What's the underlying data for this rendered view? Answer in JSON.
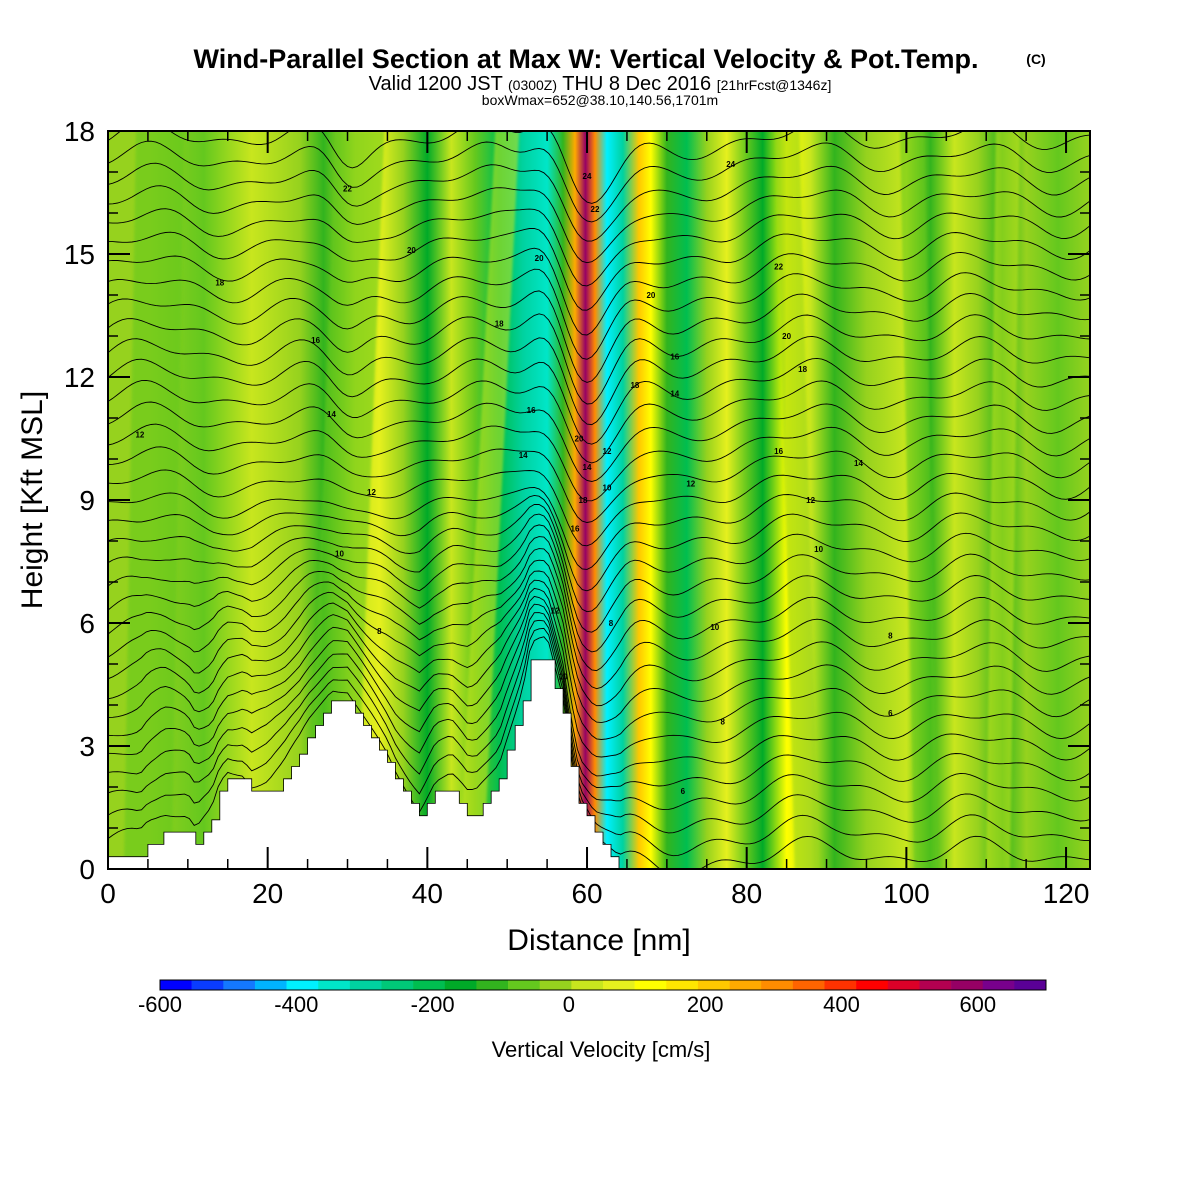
{
  "title": {
    "main": "Wind-Parallel Section at Max W: Vertical Velocity & Pot.Temp.",
    "copyright": "(C)",
    "line2_a": "Valid 1200 JST ",
    "line2_b": "(0300Z)",
    "line2_c": " THU 8 Dec 2016 ",
    "line2_d": "[21hrFcst@1346z]",
    "line3": "boxWmax=652@38.10,140.56,1701m"
  },
  "chart_data": {
    "type": "heatmap",
    "xlabel": "Distance [nm]",
    "ylabel": "Height [Kft MSL]",
    "xlim": [
      0,
      123
    ],
    "ylim": [
      0,
      18
    ],
    "x_ticks": [
      0,
      20,
      40,
      60,
      80,
      100,
      120
    ],
    "y_ticks": [
      0,
      3,
      6,
      9,
      12,
      15,
      18
    ],
    "colorbar": {
      "label": "Vertical Velocity [cm/s]",
      "min": -600,
      "max": 700,
      "step": 50,
      "tick_values": [
        -600,
        -400,
        -200,
        0,
        200,
        400,
        600
      ],
      "colors": [
        "#0000ff",
        "#0a3cff",
        "#1478ff",
        "#00b4ff",
        "#00f0ff",
        "#00e6c8",
        "#00d2a0",
        "#00c878",
        "#00be50",
        "#00aa28",
        "#32b41e",
        "#64c81e",
        "#96d21e",
        "#c8e61e",
        "#e6f01e",
        "#ffff00",
        "#ffe600",
        "#ffc800",
        "#ffaa00",
        "#ff8c00",
        "#ff6400",
        "#ff3200",
        "#ff0000",
        "#dc0028",
        "#b40050",
        "#960064",
        "#78008c",
        "#5a0096"
      ]
    },
    "terrain_kft": [
      [
        0,
        0.3
      ],
      [
        4,
        0.3
      ],
      [
        5,
        0.6
      ],
      [
        7,
        0.9
      ],
      [
        10,
        0.9
      ],
      [
        11,
        0.6
      ],
      [
        12,
        0.9
      ],
      [
        13,
        1.2
      ],
      [
        14,
        1.9
      ],
      [
        15,
        2.2
      ],
      [
        17,
        2.2
      ],
      [
        18,
        1.9
      ],
      [
        20,
        1.9
      ],
      [
        22,
        2.2
      ],
      [
        23,
        2.5
      ],
      [
        24,
        2.8
      ],
      [
        25,
        3.2
      ],
      [
        26,
        3.5
      ],
      [
        27,
        3.8
      ],
      [
        28,
        4.1
      ],
      [
        30,
        4.1
      ],
      [
        31,
        3.8
      ],
      [
        32,
        3.5
      ],
      [
        33,
        3.2
      ],
      [
        34,
        2.9
      ],
      [
        35,
        2.6
      ],
      [
        36,
        2.2
      ],
      [
        37,
        1.9
      ],
      [
        38,
        1.6
      ],
      [
        39,
        1.3
      ],
      [
        40,
        1.6
      ],
      [
        41,
        1.9
      ],
      [
        43,
        1.9
      ],
      [
        44,
        1.6
      ],
      [
        45,
        1.3
      ],
      [
        46,
        1.3
      ],
      [
        47,
        1.6
      ],
      [
        48,
        1.9
      ],
      [
        49,
        2.2
      ],
      [
        50,
        2.9
      ],
      [
        51,
        3.5
      ],
      [
        52,
        4.1
      ],
      [
        53,
        5.1
      ],
      [
        55,
        5.1
      ],
      [
        56,
        4.4
      ],
      [
        57,
        3.8
      ],
      [
        58,
        2.5
      ],
      [
        59,
        1.6
      ],
      [
        60,
        1.3
      ],
      [
        61,
        0.9
      ],
      [
        62,
        0.6
      ],
      [
        63,
        0.3
      ],
      [
        64,
        0
      ]
    ],
    "w_bands": [
      {
        "x": 0,
        "w": 0
      },
      {
        "x": 5,
        "w": 40
      },
      {
        "x": 12,
        "w": -20
      },
      {
        "x": 18,
        "w": 60
      },
      {
        "x": 24,
        "w": 0
      },
      {
        "x": 27,
        "w": -60
      },
      {
        "x": 31,
        "w": 80
      },
      {
        "x": 34,
        "w": 120
      },
      {
        "x": 37,
        "w": 20
      },
      {
        "x": 40,
        "w": -120
      },
      {
        "x": 43,
        "w": 60
      },
      {
        "x": 46,
        "w": -40
      },
      {
        "x": 49,
        "w": -160
      },
      {
        "x": 52,
        "w": -260
      },
      {
        "x": 55,
        "w": -350
      },
      {
        "x": 57,
        "w": -100
      },
      {
        "x": 58.5,
        "w": 320
      },
      {
        "x": 59.8,
        "w": 650
      },
      {
        "x": 61,
        "w": 380
      },
      {
        "x": 62.5,
        "w": -380
      },
      {
        "x": 64.5,
        "w": -300
      },
      {
        "x": 66.5,
        "w": 260
      },
      {
        "x": 68,
        "w": 150
      },
      {
        "x": 70,
        "w": -60
      },
      {
        "x": 72.5,
        "w": -180
      },
      {
        "x": 75,
        "w": 40
      },
      {
        "x": 77.5,
        "w": 140
      },
      {
        "x": 80,
        "w": -40
      },
      {
        "x": 82,
        "w": -120
      },
      {
        "x": 85,
        "w": 180
      },
      {
        "x": 88,
        "w": 60
      },
      {
        "x": 91,
        "w": -80
      },
      {
        "x": 95,
        "w": 30
      },
      {
        "x": 100,
        "w": 80
      },
      {
        "x": 103,
        "w": -60
      },
      {
        "x": 106,
        "w": 60
      },
      {
        "x": 109,
        "w": 20
      },
      {
        "x": 112,
        "w": -60
      },
      {
        "x": 115,
        "w": 40
      },
      {
        "x": 119,
        "w": -40
      },
      {
        "x": 123,
        "w": 20
      }
    ],
    "theta_labels": [
      {
        "x": 30,
        "y": 16.6,
        "text": "22"
      },
      {
        "x": 38,
        "y": 15.1,
        "text": "20"
      },
      {
        "x": 14,
        "y": 14.3,
        "text": "18"
      },
      {
        "x": 26,
        "y": 12.9,
        "text": "16"
      },
      {
        "x": 28,
        "y": 11.1,
        "text": "14"
      },
      {
        "x": 4,
        "y": 10.6,
        "text": "12"
      },
      {
        "x": 33,
        "y": 9.2,
        "text": "12"
      },
      {
        "x": 29,
        "y": 7.7,
        "text": "10"
      },
      {
        "x": 34,
        "y": 5.8,
        "text": "8"
      },
      {
        "x": 49,
        "y": 13.3,
        "text": "18"
      },
      {
        "x": 54,
        "y": 14.9,
        "text": "20"
      },
      {
        "x": 53,
        "y": 11.2,
        "text": "16"
      },
      {
        "x": 52,
        "y": 10.1,
        "text": "14"
      },
      {
        "x": 56,
        "y": 6.3,
        "text": "12"
      },
      {
        "x": 57,
        "y": 4.7,
        "text": "10"
      },
      {
        "x": 60,
        "y": 16.9,
        "text": "24"
      },
      {
        "x": 61,
        "y": 16.1,
        "text": "22"
      },
      {
        "x": 59,
        "y": 10.5,
        "text": "20"
      },
      {
        "x": 60,
        "y": 9.8,
        "text": "14"
      },
      {
        "x": 59.5,
        "y": 9.0,
        "text": "18"
      },
      {
        "x": 58.5,
        "y": 8.3,
        "text": "16"
      },
      {
        "x": 62.5,
        "y": 10.2,
        "text": "12"
      },
      {
        "x": 62.5,
        "y": 9.3,
        "text": "10"
      },
      {
        "x": 63,
        "y": 6.0,
        "text": "8"
      },
      {
        "x": 68,
        "y": 14.0,
        "text": "20"
      },
      {
        "x": 66,
        "y": 11.8,
        "text": "18"
      },
      {
        "x": 71,
        "y": 12.5,
        "text": "16"
      },
      {
        "x": 71,
        "y": 11.6,
        "text": "14"
      },
      {
        "x": 73,
        "y": 9.4,
        "text": "12"
      },
      {
        "x": 76,
        "y": 5.9,
        "text": "10"
      },
      {
        "x": 78,
        "y": 17.2,
        "text": "24"
      },
      {
        "x": 84,
        "y": 14.7,
        "text": "22"
      },
      {
        "x": 85,
        "y": 13.0,
        "text": "20"
      },
      {
        "x": 87,
        "y": 12.2,
        "text": "18"
      },
      {
        "x": 84,
        "y": 10.2,
        "text": "16"
      },
      {
        "x": 94,
        "y": 9.9,
        "text": "14"
      },
      {
        "x": 88,
        "y": 9.0,
        "text": "12"
      },
      {
        "x": 89,
        "y": 7.8,
        "text": "10"
      },
      {
        "x": 98,
        "y": 5.7,
        "text": "8"
      },
      {
        "x": 98,
        "y": 3.8,
        "text": "6"
      },
      {
        "x": 77,
        "y": 3.6,
        "text": "8"
      },
      {
        "x": 72,
        "y": 1.9,
        "text": "6"
      }
    ]
  }
}
